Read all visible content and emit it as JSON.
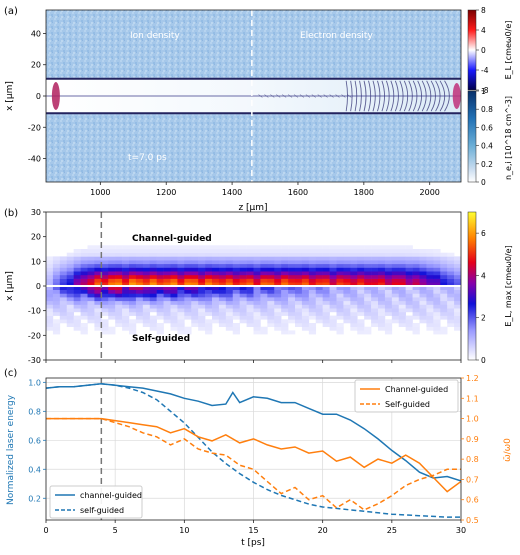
{
  "chart_data": [
    {
      "panel": "(a)",
      "type": "heatmap",
      "title": "",
      "xlabel": "z [μm]",
      "ylabel": "x [μm]",
      "xlim": [
        835,
        2095
      ],
      "ylim": [
        -55,
        55
      ],
      "xticks": [
        1000,
        1200,
        1400,
        1600,
        1800,
        2000
      ],
      "yticks": [
        -40,
        -20,
        0,
        20,
        40
      ],
      "annotations": [
        "Ion density",
        "Electron density",
        "t=7.0 ps"
      ],
      "divider_z": 1460,
      "channel_walls_x": [
        -11,
        11
      ],
      "colorbars": [
        {
          "label": "E_L [cmeω0/e]",
          "ticks": [
            8,
            4,
            0,
            -4,
            -8
          ],
          "range": [
            -8,
            8
          ],
          "colormap": "seismic"
        },
        {
          "label": "n_e,i [10^18 cm^-3]",
          "ticks": [
            1,
            0.8,
            0.6,
            0.4,
            0.2,
            0
          ],
          "range": [
            0,
            1
          ],
          "colormap": "blues"
        }
      ]
    },
    {
      "panel": "(b)",
      "type": "heatmap",
      "title": "",
      "xlabel": "",
      "ylabel": "x [μm]",
      "xlim": [
        0,
        30
      ],
      "ylim": [
        -30,
        30
      ],
      "yticks": [
        30,
        20,
        10,
        0,
        -10,
        -20,
        -30
      ],
      "annotations": [
        "Channel-guided",
        "Self-guided"
      ],
      "marker_t": 4,
      "colorbar": {
        "label": "E_L, max [cmeω0/e]",
        "ticks": [
          6,
          4,
          2,
          0
        ],
        "range": [
          0,
          7
        ],
        "colormap": "plasma-like"
      },
      "peak_profile_t": [
        0,
        2,
        4,
        6,
        8,
        10,
        12,
        14,
        16,
        18,
        20,
        22,
        24,
        26,
        28,
        30
      ],
      "peak_profile_value": [
        0.6,
        2.2,
        4.3,
        4.6,
        4.4,
        4.5,
        4.3,
        4.0,
        4.2,
        4.1,
        3.9,
        3.7,
        3.5,
        3.2,
        2.4,
        1.2
      ]
    },
    {
      "panel": "(c)",
      "type": "line",
      "title": "",
      "xlabel": "t [ps]",
      "ylabel": "Normalized laser energy",
      "y2label": "ω̄/ω0",
      "xlim": [
        0,
        30
      ],
      "ylim": [
        0.05,
        1.03
      ],
      "y2lim": [
        0.5,
        1.2
      ],
      "xticks": [
        0,
        5,
        10,
        15,
        20,
        25,
        30
      ],
      "yticks": [
        0.2,
        0.4,
        0.6,
        0.8,
        1.0
      ],
      "y2ticks": [
        0.5,
        0.6,
        0.7,
        0.8,
        0.9,
        1.0,
        1.1,
        1.2
      ],
      "grid": true,
      "marker_t": 4,
      "series": [
        {
          "name": "channel-guided",
          "axis": "left",
          "color": "#1f77b4",
          "dash": "solid",
          "x": [
            0,
            1,
            2,
            3,
            4,
            5,
            6,
            7,
            8,
            9,
            10,
            11,
            12,
            13,
            13.5,
            14,
            15,
            16,
            17,
            18,
            19,
            20,
            21,
            22,
            23,
            24,
            25,
            26,
            27,
            28,
            29,
            30
          ],
          "y": [
            0.96,
            0.97,
            0.97,
            0.98,
            0.99,
            0.98,
            0.97,
            0.96,
            0.94,
            0.92,
            0.89,
            0.87,
            0.84,
            0.85,
            0.93,
            0.86,
            0.9,
            0.89,
            0.86,
            0.86,
            0.82,
            0.78,
            0.78,
            0.74,
            0.68,
            0.61,
            0.53,
            0.46,
            0.38,
            0.34,
            0.35,
            0.32
          ]
        },
        {
          "name": "self-guided",
          "axis": "left",
          "color": "#1f77b4",
          "dash": "dashed",
          "x": [
            0,
            1,
            2,
            3,
            4,
            5,
            6,
            7,
            8,
            9,
            10,
            11,
            12,
            13,
            14,
            15,
            16,
            17,
            18,
            19,
            20,
            21,
            22,
            23,
            24,
            25,
            26,
            27,
            28,
            29,
            30
          ],
          "y": [
            0.96,
            0.97,
            0.97,
            0.98,
            0.99,
            0.98,
            0.96,
            0.93,
            0.88,
            0.8,
            0.72,
            0.62,
            0.52,
            0.44,
            0.37,
            0.31,
            0.26,
            0.22,
            0.19,
            0.16,
            0.14,
            0.13,
            0.12,
            0.11,
            0.1,
            0.09,
            0.085,
            0.08,
            0.075,
            0.07,
            0.07
          ]
        },
        {
          "name": "Channel-guided",
          "axis": "right",
          "color": "#ff7f0e",
          "dash": "solid",
          "x": [
            0,
            2,
            4,
            5,
            6,
            7,
            8,
            9,
            10,
            11,
            12,
            13,
            14,
            15,
            16,
            17,
            18,
            19,
            20,
            21,
            22,
            23,
            24,
            25,
            26,
            27,
            28,
            29,
            30
          ],
          "y": [
            1.0,
            1.0,
            1.0,
            0.99,
            0.98,
            0.97,
            0.96,
            0.93,
            0.95,
            0.91,
            0.89,
            0.92,
            0.88,
            0.9,
            0.87,
            0.85,
            0.86,
            0.83,
            0.84,
            0.79,
            0.81,
            0.76,
            0.8,
            0.78,
            0.82,
            0.78,
            0.71,
            0.64,
            0.69
          ]
        },
        {
          "name": "Self-guided",
          "axis": "right",
          "color": "#ff7f0e",
          "dash": "dashed",
          "x": [
            0,
            2,
            4,
            5,
            6,
            7,
            8,
            9,
            10,
            11,
            12,
            13,
            14,
            15,
            16,
            17,
            18,
            19,
            20,
            21,
            22,
            23,
            24,
            25,
            26,
            27,
            28,
            29,
            30
          ],
          "y": [
            1.0,
            1.0,
            1.0,
            0.98,
            0.96,
            0.93,
            0.91,
            0.87,
            0.9,
            0.85,
            0.83,
            0.82,
            0.77,
            0.75,
            0.69,
            0.63,
            0.66,
            0.6,
            0.62,
            0.56,
            0.6,
            0.55,
            0.58,
            0.62,
            0.67,
            0.7,
            0.72,
            0.75,
            0.75
          ]
        }
      ],
      "legends": [
        {
          "placement": "bottom-left",
          "entries": [
            "channel-guided",
            "self-guided"
          ]
        },
        {
          "placement": "top-right",
          "entries": [
            "Channel-guided",
            "Self-guided"
          ]
        }
      ]
    }
  ]
}
